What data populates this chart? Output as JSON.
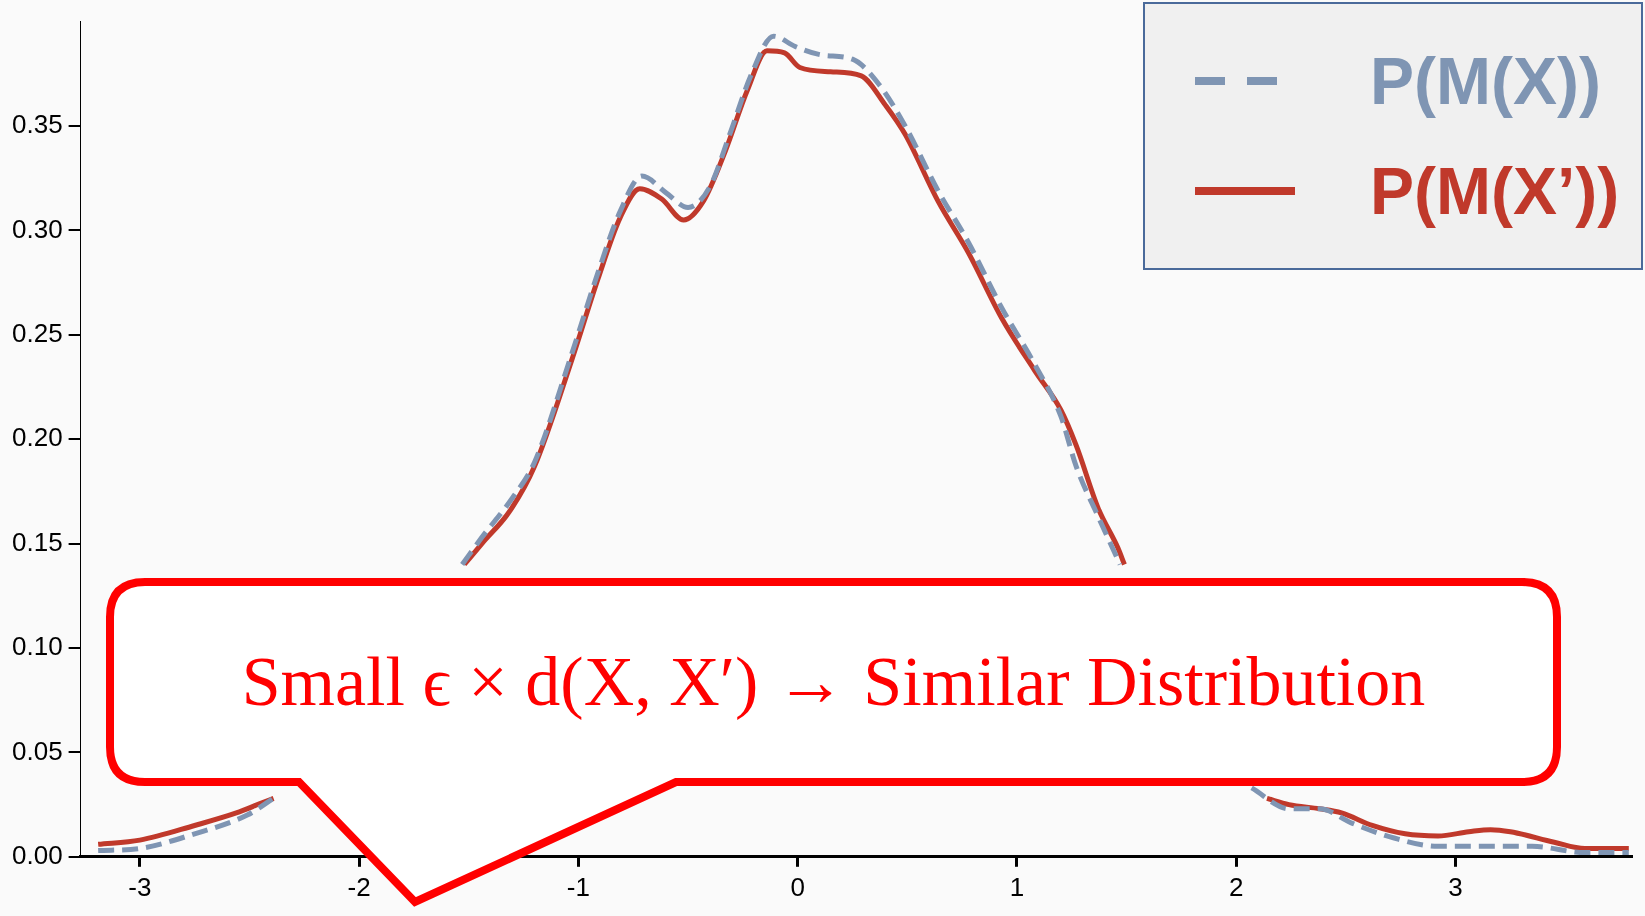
{
  "chart_data": {
    "type": "line",
    "xlim": [
      -3.27,
      3.8
    ],
    "xticks": [
      -3,
      -2,
      -1,
      0,
      1,
      2,
      3
    ],
    "ylim": [
      0,
      0.4
    ],
    "yticks": [
      {
        "value": 0,
        "label": "0.00"
      },
      {
        "value": 0.05,
        "label": "0.05"
      },
      {
        "value": 0.1,
        "label": "0.10"
      },
      {
        "value": 0.15,
        "label": "0.15"
      },
      {
        "value": 0.2,
        "label": "0.20"
      },
      {
        "value": 0.25,
        "label": "0.25"
      },
      {
        "value": 0.3,
        "label": "0.30"
      },
      {
        "value": 0.35,
        "label": "0.35"
      }
    ],
    "grid": false,
    "legend": "top right",
    "marker": "none",
    "annotations": [
      "Small ϵ × d(X, X′) → Similar Distribution"
    ],
    "series": [
      {
        "name": "P(M(X))",
        "color": "#7f95b3",
        "line_style": "dashed",
        "x": [
          -3.19,
          -3.0,
          -2.75,
          -2.51,
          -2.39,
          -2.0,
          -1.53,
          -1.44,
          -1.3,
          -1.2,
          -1.03,
          -0.91,
          -0.81,
          -0.71,
          -0.6,
          -0.5,
          -0.4,
          -0.31,
          -0.21,
          -0.11,
          -0.01,
          0.11,
          0.25,
          0.37,
          0.49,
          0.64,
          0.78,
          0.93,
          1.08,
          1.2,
          1.27,
          1.37,
          1.47,
          1.8,
          2.07,
          2.24,
          2.38,
          2.53,
          2.72,
          2.92,
          3.16,
          3.35,
          3.59,
          3.79
        ],
        "values": [
          0.003,
          0.004,
          0.011,
          0.02,
          0.028,
          null,
          0.14,
          0.153,
          0.172,
          0.189,
          0.241,
          0.28,
          0.309,
          0.326,
          0.318,
          0.311,
          0.321,
          0.346,
          0.375,
          0.393,
          0.388,
          0.384,
          0.382,
          0.37,
          0.35,
          0.319,
          0.294,
          0.263,
          0.236,
          0.211,
          0.187,
          0.163,
          0.14,
          null,
          0.033,
          0.023,
          0.023,
          0.016,
          0.009,
          0.005,
          0.005,
          0.005,
          0.002,
          0.002
        ]
      },
      {
        "name": "P(M(X’))",
        "color": "#c0392b",
        "line_style": "solid",
        "x": [
          -3.19,
          -3.0,
          -2.75,
          -2.56,
          -2.44,
          -2.39,
          -2.0,
          -1.52,
          -1.44,
          -1.31,
          -1.2,
          -1.03,
          -0.91,
          -0.81,
          -0.72,
          -0.62,
          -0.52,
          -0.43,
          -0.33,
          -0.23,
          -0.14,
          -0.06,
          0.01,
          0.15,
          0.29,
          0.4,
          0.49,
          0.64,
          0.78,
          0.93,
          1.08,
          1.2,
          1.27,
          1.37,
          1.46,
          1.49,
          1.8,
          2.14,
          2.24,
          2.38,
          2.48,
          2.62,
          2.77,
          2.92,
          3.06,
          3.16,
          3.25,
          3.45,
          3.59,
          3.79
        ],
        "values": [
          0.006,
          0.008,
          0.015,
          0.021,
          0.026,
          0.028,
          null,
          0.14,
          0.15,
          0.166,
          0.187,
          0.238,
          0.277,
          0.306,
          0.32,
          0.315,
          0.305,
          0.314,
          0.338,
          0.367,
          0.386,
          0.385,
          0.378,
          0.376,
          0.374,
          0.36,
          0.346,
          0.314,
          0.289,
          0.258,
          0.233,
          0.214,
          0.197,
          0.167,
          0.148,
          0.14,
          null,
          0.028,
          0.025,
          0.023,
          0.021,
          0.015,
          0.011,
          0.01,
          0.012,
          0.013,
          0.012,
          0.007,
          0.004,
          0.004
        ]
      }
    ]
  }
}
